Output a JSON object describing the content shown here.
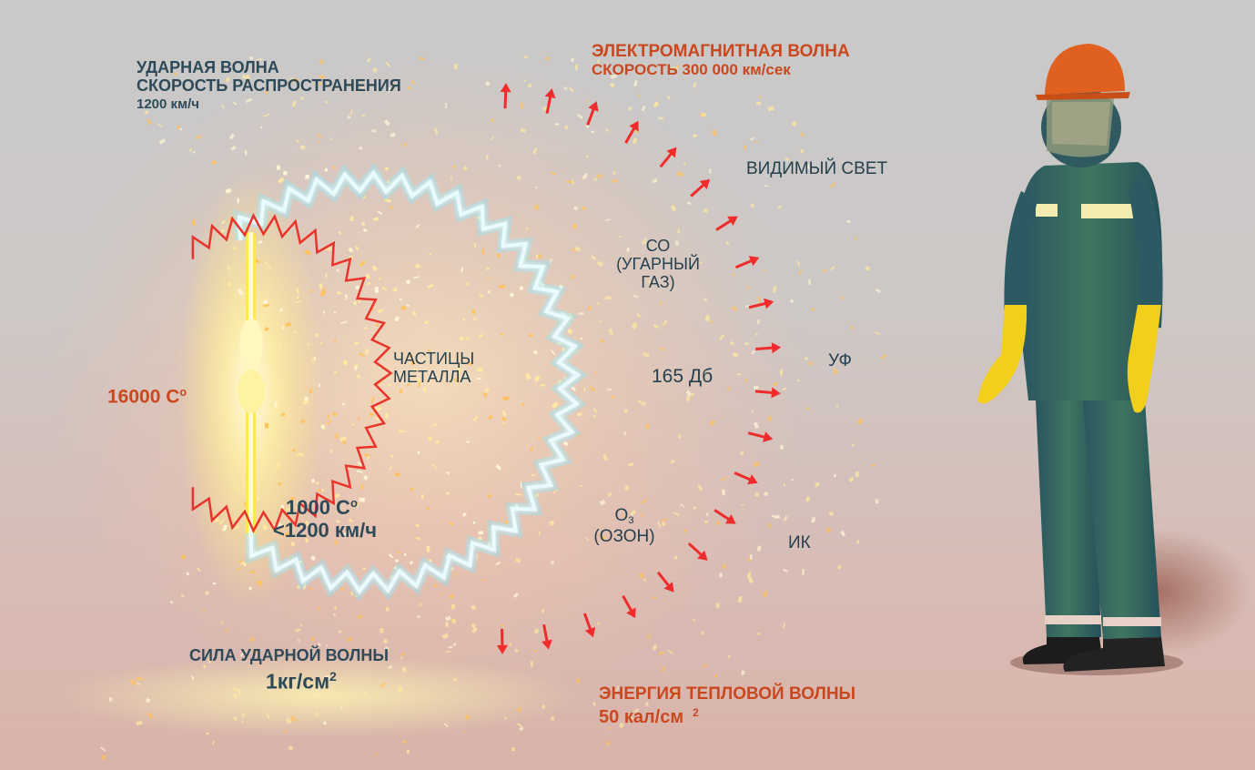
{
  "colors": {
    "label_dark": "#2e4a58",
    "label_red": "#c9481f",
    "wave_blue": "#7fe9ff",
    "wave_red": "#e8342a",
    "arc_glow": "#ffd27a",
    "background": "#cacaca"
  },
  "labels": {
    "shock_title": "УДАРНАЯ ВОЛНА",
    "shock_speed_label": "СКОРОСТЬ РАСПРОСТРАНЕНИЯ",
    "shock_speed_value": "1200 км/ч",
    "em_title": "ЭЛЕКТРОМАГНИТНАЯ ВОЛНА",
    "em_speed": "СКОРОСТЬ 300 000 км/сек",
    "visible_light": "ВИДИМЫЙ СВЕТ",
    "co_line1": "СО",
    "co_line2": "(УГАРНЫЙ",
    "co_line3": "ГАЗ)",
    "metal_line1": "ЧАСТИЦЫ",
    "metal_line2": "МЕТАЛЛА",
    "arc_temp_value": "16000 С",
    "arc_temp_unit_mark": "о",
    "noise": "165 Дб",
    "uv": "УФ",
    "ozone_symbol": "О",
    "ozone_subscript": "3",
    "ozone_name": "(ОЗОН)",
    "particle_temp_value": "1000 С",
    "particle_temp_unit_mark": "о",
    "particle_speed": "<1200 км/ч",
    "ir": "ИК",
    "shock_force_title": "СИЛА УДАРНОЙ ВОЛНЫ",
    "shock_force_value": "1кг/см",
    "shock_force_exp": "2",
    "heat_title": "ЭНЕРГИЯ ТЕПЛОВОЙ ВОЛНЫ",
    "heat_value": "50 кал/см",
    "heat_exp": "2"
  },
  "icons": {
    "arc": "electric-arc-icon",
    "worker": "protected-worker-figure",
    "em_arrow": "red-arrow-icon"
  }
}
